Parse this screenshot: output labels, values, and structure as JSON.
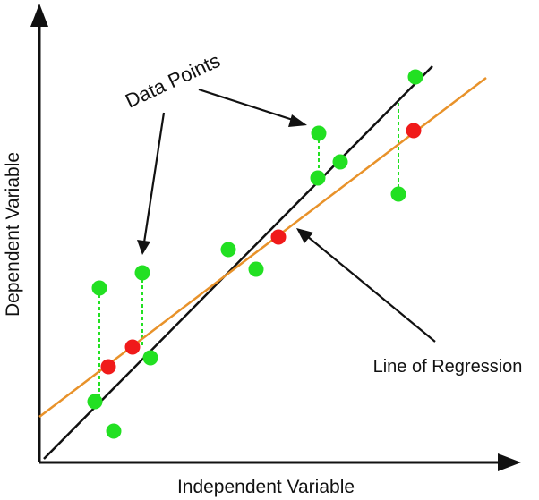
{
  "labels": {
    "x_axis": "Independent Variable",
    "y_axis": "Dependent Variable",
    "data_points": "Data Points",
    "regression": "Line of Regression"
  },
  "colors": {
    "observed_point": "#22e022",
    "predicted_point": "#f01a1a",
    "regression_line": "#e8922a",
    "reference_line": "#111111",
    "residual_line": "#22e022",
    "axis": "#111111"
  },
  "icons": {
    "axis_arrowheads": "arrowhead-icon",
    "callout_arrowheads": "arrowhead-icon"
  }
}
